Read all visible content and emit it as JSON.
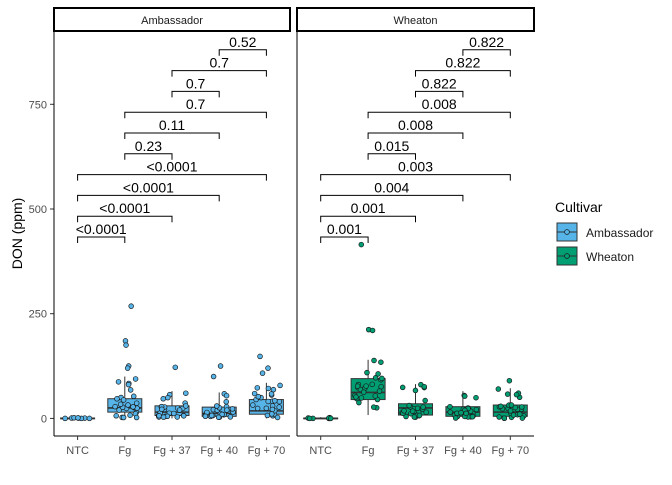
{
  "chart_data": {
    "type": "box",
    "ylabel": "DON (ppm)",
    "xlabel": "",
    "ylim": [
      -42,
      925
    ],
    "yticks": [
      0,
      250,
      500,
      750
    ],
    "categories": [
      "NTC",
      "Fg",
      "Fg + 37",
      "Fg + 40",
      "Fg + 70"
    ],
    "legend": {
      "title": "Cultivar",
      "position": "right",
      "entries": [
        {
          "name": "Ambassador",
          "color": "#56B4E9"
        },
        {
          "name": "Wheaton",
          "color": "#009E73"
        }
      ]
    },
    "panels": [
      {
        "title": "Ambassador",
        "color": "#56B4E9",
        "boxes": [
          {
            "category": "NTC",
            "min": 0,
            "q1": 0,
            "median": 0,
            "q3": 1,
            "max": 3
          },
          {
            "category": "Fg",
            "min": 0,
            "q1": 15,
            "median": 25,
            "q3": 47,
            "max": 100
          },
          {
            "category": "Fg + 37",
            "min": 0,
            "q1": 7,
            "median": 15,
            "q3": 30,
            "max": 65
          },
          {
            "category": "Fg + 40",
            "min": 0,
            "q1": 5,
            "median": 12,
            "q3": 27,
            "max": 62
          },
          {
            "category": "Fg + 70",
            "min": 0,
            "q1": 10,
            "median": 18,
            "q3": 45,
            "max": 85
          }
        ],
        "outliers": [
          {
            "category": "Fg",
            "values": [
              268,
              185,
              175,
              125,
              120
            ]
          },
          {
            "category": "Fg + 37",
            "values": [
              122
            ]
          },
          {
            "category": "Fg + 40",
            "values": [
              125,
              100
            ]
          },
          {
            "category": "Fg + 70",
            "values": [
              148,
              120,
              108
            ]
          }
        ],
        "comparisons": [
          {
            "from": "NTC",
            "to": "Fg",
            "p": "<0.0001"
          },
          {
            "from": "NTC",
            "to": "Fg + 37",
            "p": "<0.0001"
          },
          {
            "from": "NTC",
            "to": "Fg + 40",
            "p": "<0.0001"
          },
          {
            "from": "NTC",
            "to": "Fg + 70",
            "p": "<0.0001"
          },
          {
            "from": "Fg",
            "to": "Fg + 37",
            "p": "0.23"
          },
          {
            "from": "Fg",
            "to": "Fg + 40",
            "p": "0.11"
          },
          {
            "from": "Fg",
            "to": "Fg + 70",
            "p": "0.7"
          },
          {
            "from": "Fg + 37",
            "to": "Fg + 40",
            "p": "0.7"
          },
          {
            "from": "Fg + 37",
            "to": "Fg + 70",
            "p": "0.7"
          },
          {
            "from": "Fg + 40",
            "to": "Fg + 70",
            "p": "0.52"
          }
        ]
      },
      {
        "title": "Wheaton",
        "color": "#009E73",
        "boxes": [
          {
            "category": "NTC",
            "min": 0,
            "q1": 0,
            "median": 0,
            "q3": 1,
            "max": 3
          },
          {
            "category": "Fg",
            "min": 8,
            "q1": 45,
            "median": 62,
            "q3": 95,
            "max": 140
          },
          {
            "category": "Fg + 37",
            "min": 0,
            "q1": 8,
            "median": 25,
            "q3": 35,
            "max": 82
          },
          {
            "category": "Fg + 40",
            "min": 0,
            "q1": 5,
            "median": 15,
            "q3": 28,
            "max": 65
          },
          {
            "category": "Fg + 70",
            "min": 0,
            "q1": 5,
            "median": 15,
            "q3": 32,
            "max": 72
          }
        ],
        "outliers": [
          {
            "category": "Fg",
            "values": [
              415,
              212,
              210
            ]
          },
          {
            "category": "Fg + 70",
            "values": [
              90
            ]
          }
        ],
        "comparisons": [
          {
            "from": "NTC",
            "to": "Fg",
            "p": "0.001"
          },
          {
            "from": "NTC",
            "to": "Fg + 37",
            "p": "0.001"
          },
          {
            "from": "NTC",
            "to": "Fg + 40",
            "p": "0.004"
          },
          {
            "from": "NTC",
            "to": "Fg + 70",
            "p": "0.003"
          },
          {
            "from": "Fg",
            "to": "Fg + 37",
            "p": "0.015"
          },
          {
            "from": "Fg",
            "to": "Fg + 40",
            "p": "0.008"
          },
          {
            "from": "Fg",
            "to": "Fg + 70",
            "p": "0.008"
          },
          {
            "from": "Fg + 37",
            "to": "Fg + 40",
            "p": "0.822"
          },
          {
            "from": "Fg + 37",
            "to": "Fg + 70",
            "p": "0.822"
          },
          {
            "from": "Fg + 40",
            "to": "Fg + 70",
            "p": "0.822"
          }
        ]
      }
    ]
  }
}
